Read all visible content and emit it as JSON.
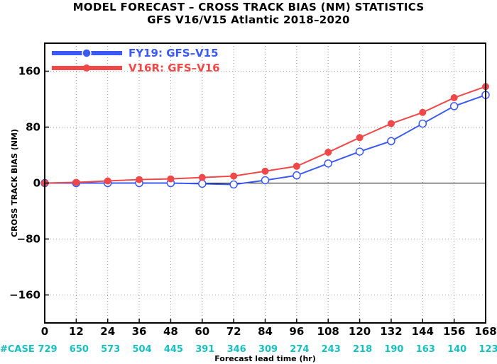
{
  "header": {
    "title": "MODEL FORECAST – CROSS TRACK BIAS (NM) STATISTICS",
    "subtitle": "GFS V16/V15 Atlantic 2018–2020"
  },
  "chart_data": {
    "type": "line",
    "title": "MODEL FORECAST – CROSS TRACK BIAS (NM) STATISTICS",
    "subtitle": "GFS V16/V15 Atlantic 2018–2020",
    "xlabel": "Forecast lead time (hr)",
    "ylabel": "CROSS TRACK BIAS (NM)",
    "x": [
      0,
      12,
      24,
      36,
      48,
      60,
      72,
      84,
      96,
      108,
      120,
      132,
      144,
      156,
      168
    ],
    "xlim": [
      0,
      168
    ],
    "ylim": [
      -200,
      200
    ],
    "yticks": [
      -160,
      -80,
      0,
      80,
      160
    ],
    "xticks": [
      0,
      12,
      24,
      36,
      48,
      60,
      72,
      84,
      96,
      108,
      120,
      132,
      144,
      156,
      168
    ],
    "grid": true,
    "legend_position": "top-left",
    "zero_line": true,
    "series": [
      {
        "name": "FY19: GFS–V15",
        "color": "#3b59f5",
        "marker": "open-circle",
        "values": [
          0,
          0,
          0,
          0,
          0,
          -1,
          -2,
          4,
          11,
          28,
          45,
          60,
          85,
          110,
          126
        ]
      },
      {
        "name": "V16R: GFS–V16",
        "color": "#f04848",
        "marker": "filled-circle",
        "values": [
          0,
          1,
          3,
          5,
          6,
          8,
          10,
          17,
          24,
          44,
          65,
          85,
          101,
          122,
          138
        ]
      }
    ],
    "cases_label": "#CASE",
    "cases": [
      729,
      650,
      573,
      504,
      445,
      391,
      346,
      309,
      274,
      243,
      218,
      190,
      163,
      140,
      123
    ],
    "cases_color": "#18c0c0"
  }
}
